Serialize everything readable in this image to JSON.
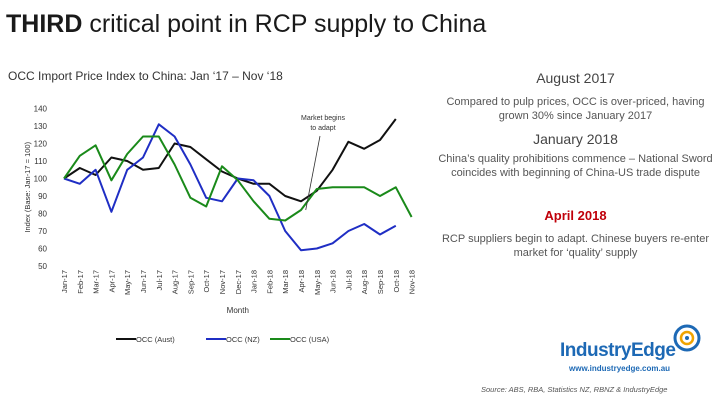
{
  "header": {
    "title_bold": "THIRD",
    "title_rest": " critical point in RCP supply to China"
  },
  "panels": [
    {
      "heading": "August 2017",
      "text": "Compared to pulp prices, OCC is over-priced, having grown 30% since January 2017",
      "red": false
    },
    {
      "heading": "January 2018",
      "text": "China’s quality prohibitions commence – National Sword coincides with beginning of China-US trade dispute",
      "red": false
    },
    {
      "heading": "April 2018",
      "text": "RCP suppliers begin to adapt. Chinese buyers re-enter market for ‘quality’ supply",
      "red": true
    }
  ],
  "logo": {
    "name": "IndustryEdge",
    "url": "www.industryedge.com.au"
  },
  "source": "Source: ABS, RBA, Statistics NZ, RBNZ & IndustryEdge",
  "chart_data": {
    "type": "line",
    "title": "OCC Import Price Index to China: Jan ‘17 – Nov ‘18",
    "xlabel": "Month",
    "ylabel": "Index (Base: Jan-17 = 100)",
    "ylim": [
      50,
      140
    ],
    "yticks": [
      50,
      60,
      70,
      80,
      90,
      100,
      110,
      120,
      130,
      140
    ],
    "grid": false,
    "legend_position": "bottom",
    "categories": [
      "Jan-17",
      "Feb-17",
      "Mar-17",
      "Apr-17",
      "May-17",
      "Jun-17",
      "Jul-17",
      "Aug-17",
      "Sep-17",
      "Oct-17",
      "Nov-17",
      "Dec-17",
      "Jan-18",
      "Feb-18",
      "Mar-18",
      "Apr-18",
      "May-18",
      "Jun-18",
      "Jul-18",
      "Aug-18",
      "Sep-18",
      "Oct-18",
      "Nov-18"
    ],
    "series": [
      {
        "name": "OCC (Aust)",
        "color": "#111111",
        "values": [
          100,
          106,
          102,
          112,
          110,
          105,
          106,
          120,
          118,
          111,
          104,
          100,
          97,
          97,
          90,
          87,
          93,
          105,
          121,
          117,
          122,
          134,
          null
        ]
      },
      {
        "name": "OCC (NZ)",
        "color": "#1f2ec4",
        "values": [
          100,
          97,
          105,
          81,
          105,
          112,
          131,
          124,
          108,
          89,
          87,
          100,
          99,
          90,
          70,
          59,
          60,
          63,
          70,
          74,
          68,
          73,
          null
        ]
      },
      {
        "name": "OCC (USA)",
        "color": "#1a8a1a",
        "values": [
          100,
          113,
          119,
          99,
          114,
          124,
          124,
          108,
          89,
          84,
          107,
          99,
          87,
          77,
          76,
          82,
          94,
          95,
          95,
          95,
          90,
          95,
          78
        ]
      }
    ],
    "annotations": [
      {
        "text": "Market begins to adapt"
      }
    ]
  }
}
